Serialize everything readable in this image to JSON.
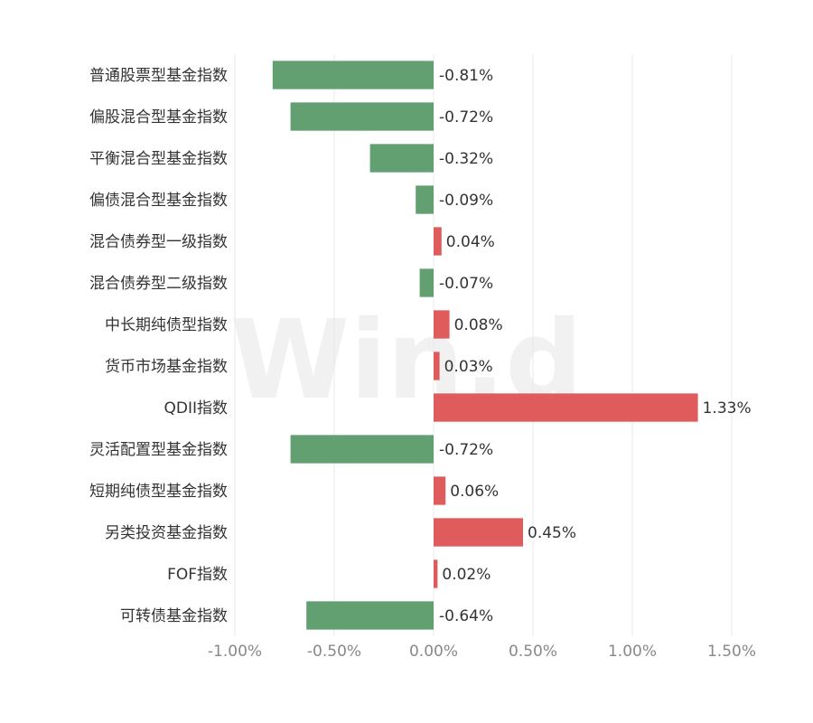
{
  "chart_data": {
    "type": "bar",
    "orientation": "horizontal",
    "categories": [
      "普通股票型基金指数",
      "偏股混合型基金指数",
      "平衡混合型基金指数",
      "偏债混合型基金指数",
      "混合债券型一级指数",
      "混合债券型二级指数",
      "中长期纯债型指数",
      "货币市场基金指数",
      "QDII指数",
      "灵活配置型基金指数",
      "短期纯债型基金指数",
      "另类投资基金指数",
      "FOF指数",
      "可转债基金指数"
    ],
    "values": [
      -0.81,
      -0.72,
      -0.32,
      -0.09,
      0.04,
      -0.07,
      0.08,
      0.03,
      1.33,
      -0.72,
      0.06,
      0.45,
      0.02,
      -0.64
    ],
    "value_labels": [
      "-0.81%",
      "-0.72%",
      "-0.32%",
      "-0.09%",
      "0.04%",
      "-0.07%",
      "0.08%",
      "0.03%",
      "1.33%",
      "-0.72%",
      "0.06%",
      "0.45%",
      "0.02%",
      "-0.64%"
    ],
    "x_ticks": [
      -1.0,
      -0.5,
      0.0,
      0.5,
      1.0,
      1.5
    ],
    "x_tick_labels": [
      "-1.00%",
      "-0.50%",
      "0.00%",
      "0.50%",
      "1.00%",
      "1.50%"
    ],
    "xlim": [
      -1.0,
      1.5
    ],
    "unit": "%",
    "grid": "vertical",
    "title": "",
    "xlabel": "",
    "ylabel": "",
    "colors": {
      "positive": "#e05c5c",
      "negative": "#62a072"
    }
  },
  "watermark": "Win.d"
}
